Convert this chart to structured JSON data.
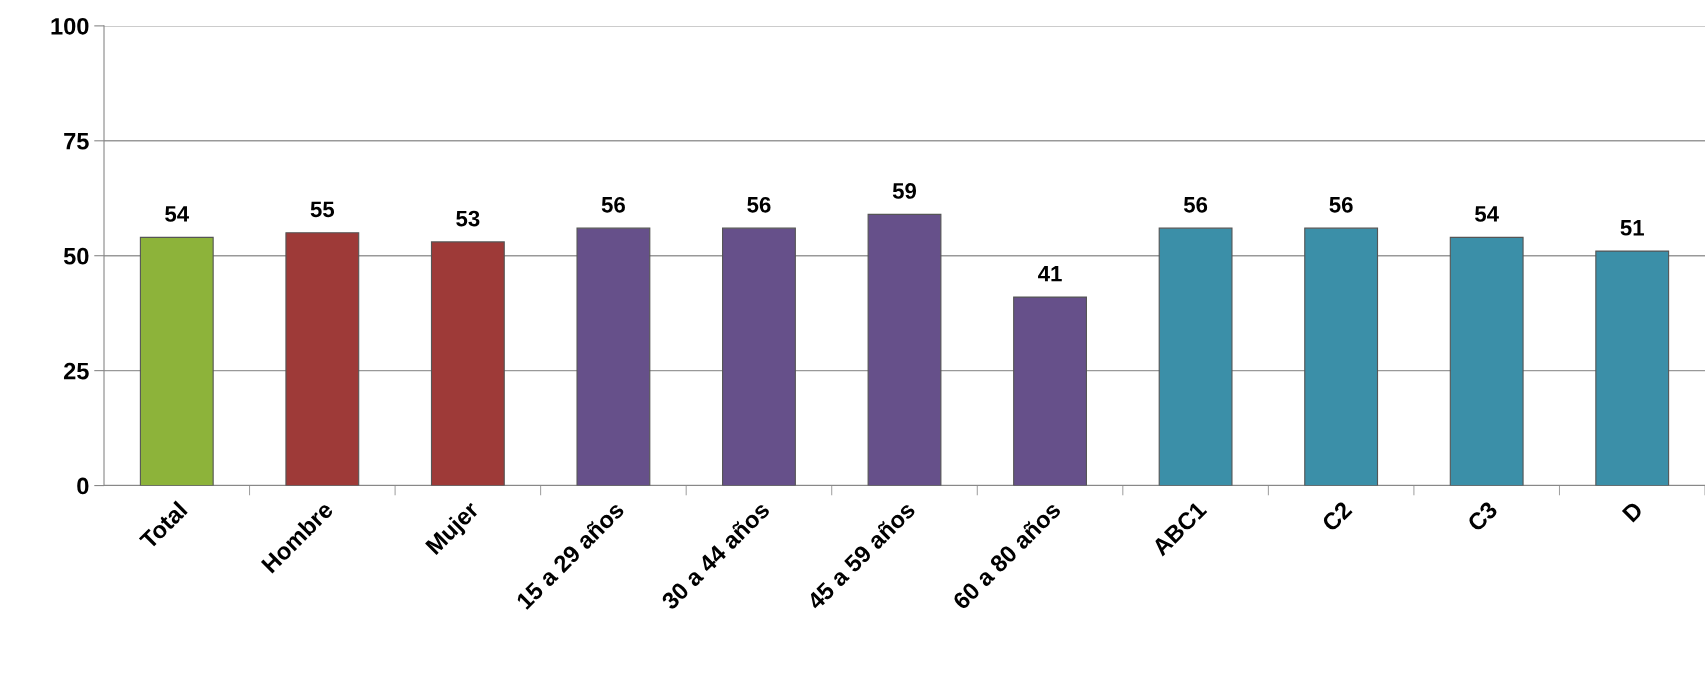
{
  "chart_data": {
    "type": "bar",
    "categories": [
      "Total",
      "Hombre",
      "Mujer",
      "15 a 29 años",
      "30 a 44 años",
      "45 a 59 años",
      "60 a 80 años",
      "ABC1",
      "C2",
      "C3",
      "D"
    ],
    "values": [
      54,
      55,
      53,
      56,
      56,
      59,
      41,
      56,
      56,
      54,
      51
    ],
    "colors": [
      "#8db33a",
      "#9e3a38",
      "#9e3a38",
      "#66508a",
      "#66508a",
      "#66508a",
      "#66508a",
      "#3b8fa8",
      "#3b8fa8",
      "#3b8fa8",
      "#3b8fa8"
    ],
    "ylim": [
      0,
      100
    ],
    "yticks": [
      0,
      25,
      50,
      75,
      100
    ],
    "grid": "y",
    "data_labels": true
  }
}
